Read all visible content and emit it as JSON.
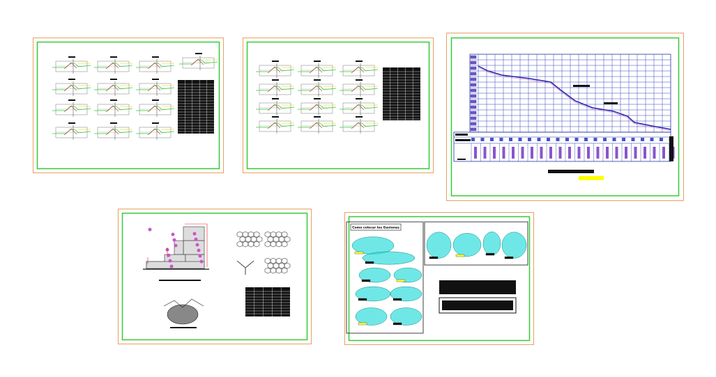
{
  "sheets": {
    "gabion_guide": {
      "title": "Como colocar los Gaviones"
    }
  }
}
